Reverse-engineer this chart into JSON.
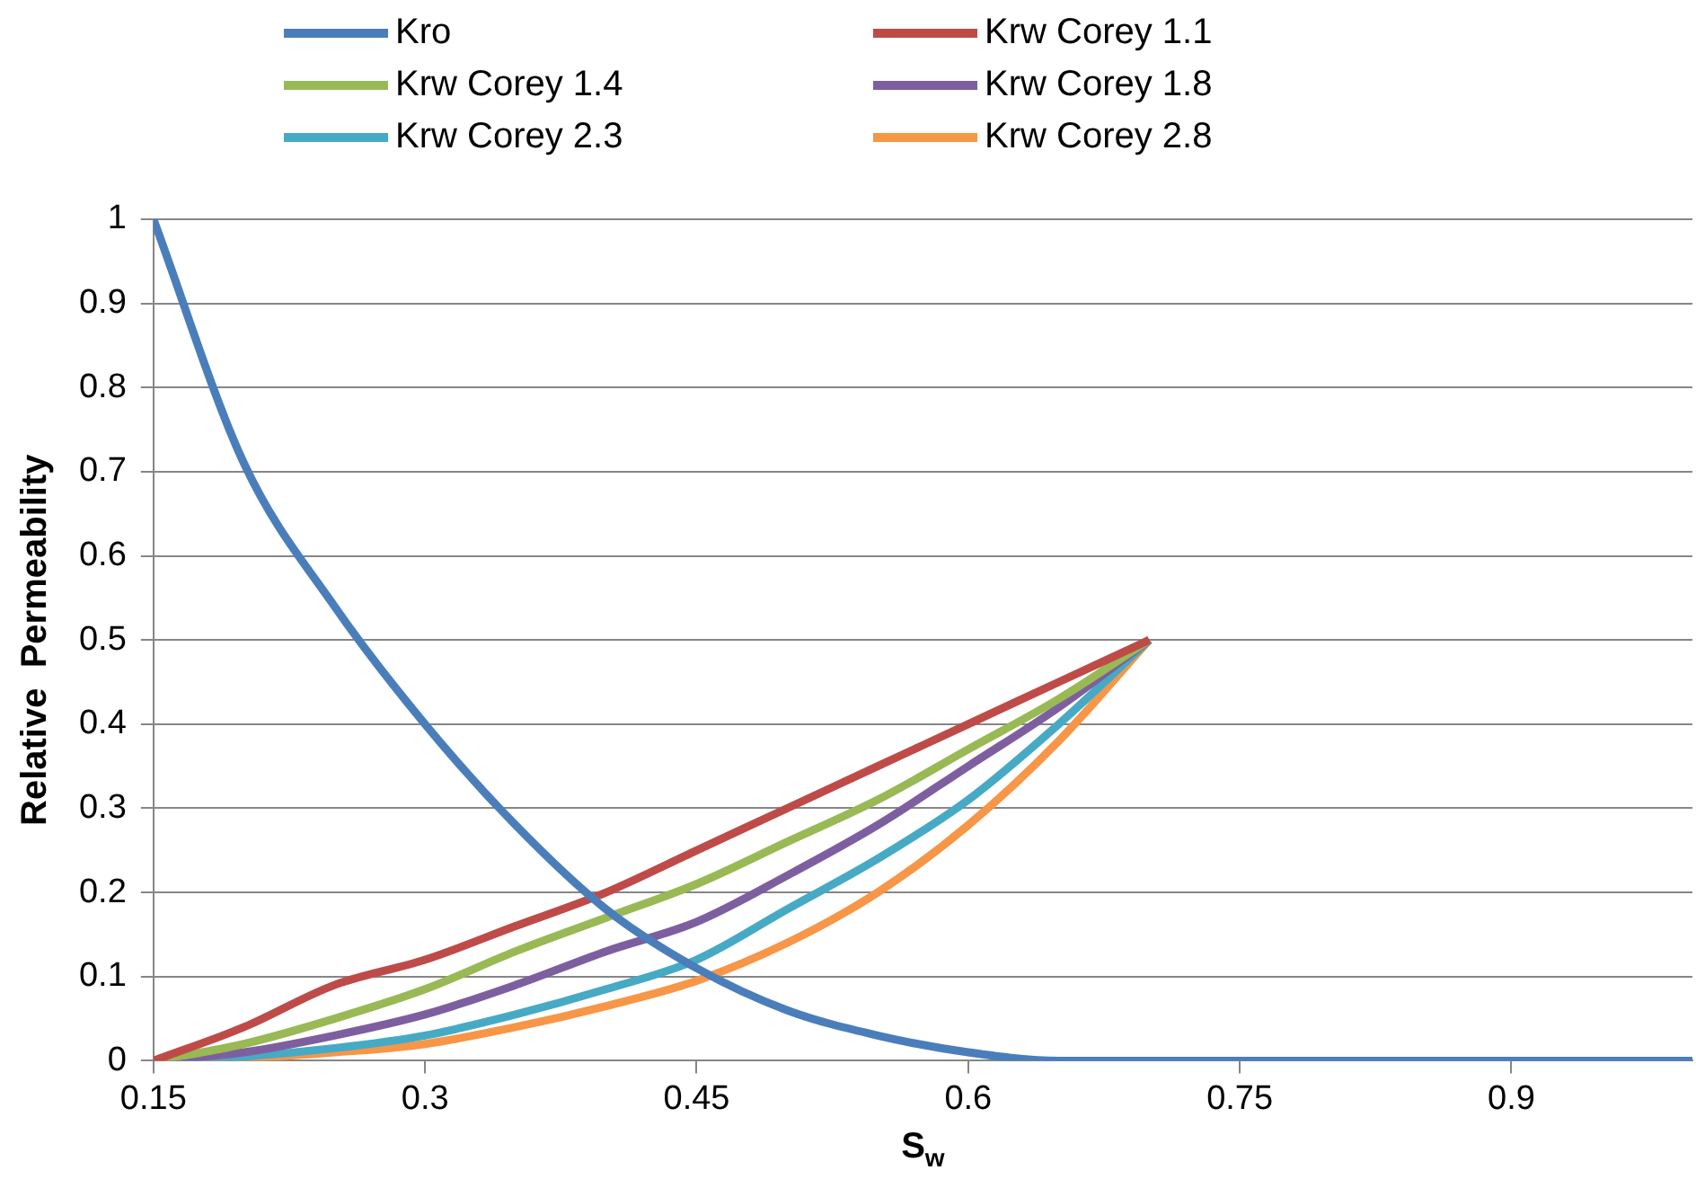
{
  "chart_data": {
    "type": "line",
    "xlabel": "S$_{w}$",
    "ylabel": "Relative  Permeability",
    "x": [
      0.15,
      0.2,
      0.25,
      0.3,
      0.35,
      0.4,
      0.45,
      0.5,
      0.55,
      0.6,
      0.65,
      0.7,
      0.75,
      0.8,
      0.85,
      0.9,
      0.95,
      1.0
    ],
    "series": [
      {
        "name": "Kro",
        "color": "#4a7ebb",
        "values": [
          1,
          0.71,
          0.54,
          0.4,
          0.28,
          0.18,
          0.11,
          0.06,
          0.03,
          0.01,
          0,
          0,
          0,
          0,
          0,
          0,
          0,
          0
        ]
      },
      {
        "name": "Krw Corey 1.1",
        "color": "#be4b48",
        "values": [
          0,
          0.04,
          0.09,
          0.12,
          0.16,
          0.2,
          0.25,
          0.3,
          0.35,
          0.4,
          0.45,
          0.5,
          null,
          null,
          null,
          null,
          null,
          null
        ]
      },
      {
        "name": "Krw Corey 1.4",
        "color": "#98b954",
        "values": [
          0,
          0.02,
          0.05,
          0.085,
          0.13,
          0.17,
          0.21,
          0.26,
          0.31,
          0.37,
          0.43,
          0.5,
          null,
          null,
          null,
          null,
          null,
          null
        ]
      },
      {
        "name": "Krw Corey 1.8",
        "color": "#7d5fa0",
        "values": [
          0,
          0.01,
          0.03,
          0.055,
          0.09,
          0.13,
          0.165,
          0.22,
          0.28,
          0.35,
          0.42,
          0.5,
          null,
          null,
          null,
          null,
          null,
          null
        ]
      },
      {
        "name": "Krw Corey 2.3",
        "color": "#46aac5",
        "values": [
          0,
          0.005,
          0.015,
          0.03,
          0.055,
          0.085,
          0.12,
          0.18,
          0.24,
          0.31,
          0.4,
          0.5,
          null,
          null,
          null,
          null,
          null,
          null
        ]
      },
      {
        "name": "Krw Corey 2.8",
        "color": "#f79646",
        "values": [
          0,
          0.003,
          0.01,
          0.02,
          0.04,
          0.065,
          0.095,
          0.14,
          0.2,
          0.28,
          0.38,
          0.5,
          null,
          null,
          null,
          null,
          null,
          null
        ]
      }
    ],
    "xlim": [
      0.15,
      1.0
    ],
    "xticks": [
      0.15,
      0.3,
      0.45,
      0.6,
      0.75,
      0.9
    ],
    "ylim": [
      0,
      1
    ],
    "yticks": [
      0,
      0.1,
      0.2,
      0.3,
      0.4,
      0.5,
      0.6,
      0.7,
      0.8,
      0.9,
      1
    ],
    "grid": "y",
    "legend": "top",
    "marker": "none",
    "line_style": "solid"
  }
}
